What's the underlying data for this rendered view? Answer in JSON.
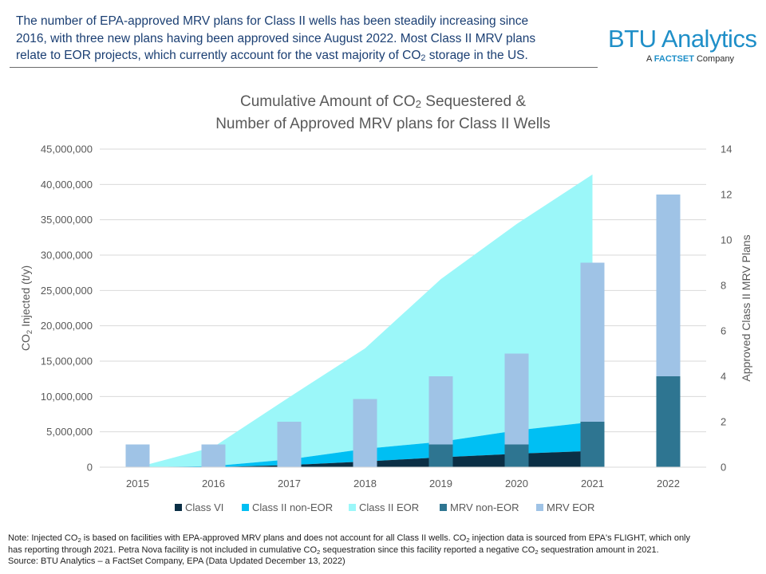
{
  "headline": {
    "line1": "The number of EPA-approved MRV plans for Class II wells has been steadily increasing since",
    "line2": "2016, with three new plans having been approved since August 2022. Most Class II MRV plans",
    "line3a": "relate to EOR projects, which currently account for the vast majority of CO",
    "line3sub": "2",
    "line3b": " storage in the US."
  },
  "logo": {
    "main": "BTU Analytics",
    "sub_a": "A ",
    "sub_b": "FACTSET",
    "sub_c": " Company",
    "color": "#1f8fc8"
  },
  "chart_title": {
    "line1a": "Cumulative Amount of CO",
    "line1sub": "2",
    "line1b": " Sequestered &",
    "line2": "Number of Approved MRV plans for Class II Wells"
  },
  "chart_data": {
    "type": "combo-stacked-area-stacked-bar",
    "categories": [
      "2015",
      "2016",
      "2017",
      "2018",
      "2019",
      "2020",
      "2021",
      "2022"
    ],
    "y_left": {
      "label_a": "CO",
      "label_sub": "2",
      "label_b": " Injected (t/y)",
      "min": 0,
      "max": 45000000,
      "step": 5000000,
      "ticks": [
        "0",
        "5,000,000",
        "10,000,000",
        "15,000,000",
        "20,000,000",
        "25,000,000",
        "30,000,000",
        "35,000,000",
        "40,000,000",
        "45,000,000"
      ]
    },
    "y_right": {
      "label": "Approved Class II MRV Plans",
      "min": 0,
      "max": 14,
      "step": 2,
      "ticks": [
        "0",
        "2",
        "4",
        "6",
        "8",
        "10",
        "12",
        "14"
      ]
    },
    "area_series": [
      {
        "name": "Class VI",
        "color": "#0b2f45",
        "values": [
          0,
          0,
          300000,
          800000,
          1400000,
          1900000,
          2300000
        ]
      },
      {
        "name": "Class II non-EOR",
        "color": "#00bff3",
        "values": [
          0,
          150000,
          800000,
          1800000,
          2200000,
          3300000,
          4100000
        ]
      },
      {
        "name": "Class II EOR",
        "color": "#9bf7f9",
        "values": [
          0,
          2700000,
          8800000,
          14200000,
          23000000,
          29200000,
          35000000
        ]
      }
    ],
    "bar_series": [
      {
        "name": "MRV non-EOR",
        "color": "#2e7591",
        "values": [
          0,
          0,
          0,
          0,
          1,
          1,
          2,
          4
        ]
      },
      {
        "name": "MRV EOR",
        "color": "#9fc3e6",
        "values": [
          1,
          1,
          2,
          3,
          3,
          4,
          7,
          8
        ]
      }
    ],
    "gridlines": true,
    "legend_position": "bottom"
  },
  "note": {
    "l1a": "Note:  Injected CO",
    "l1b": " is based on facilities with EPA-approved MRV plans and does not account for all Class II wells. CO",
    "l1c": " injection data is sourced from EPA's FLIGHT,  which only",
    "l2a": "has reporting through 2021. Petra Nova facility is not included in cumulative CO",
    "l2b": " sequestration since this facility reported a negative CO",
    "l2c": " sequestration amount in 2021.",
    "l3": "Source:  BTU Analytics – a FactSet Company, EPA  (Data Updated December  13, 2022)",
    "sub": "2"
  }
}
